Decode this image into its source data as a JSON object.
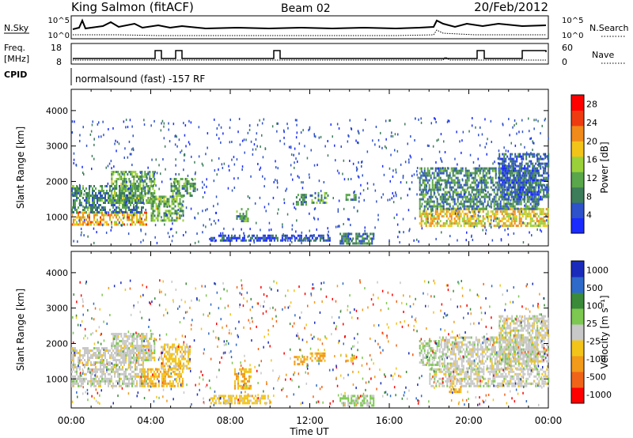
{
  "header": {
    "station": "King Salmon (fitACF)",
    "beam": "Beam 02",
    "date": "20/Feb/2012"
  },
  "strip": {
    "nsky_label": "N.Sky",
    "nsky_ticks": [
      "10^5",
      "10^0"
    ],
    "nsearch_label": "N.Search",
    "nsearch_ticks": [
      "10^5",
      "10^0"
    ],
    "freq_label_1": "Freq.",
    "freq_label_2": "[MHz]",
    "freq_ticks": [
      "18",
      "8"
    ],
    "nave_label": "Nave",
    "nave_ticks": [
      "60",
      "0"
    ],
    "cpid_label": "CPID",
    "cpid_text": "normalsound (fast) -157 RF"
  },
  "chart_data": [
    {
      "type": "heatmap",
      "name": "power-panel",
      "ylabel": "Slant Range [km]",
      "ylim": [
        180,
        4600
      ],
      "yticks": [
        1000,
        2000,
        3000,
        4000
      ],
      "xlim": [
        0,
        24
      ],
      "colorbar": {
        "label": "Power [dB]",
        "ticks": [
          "4",
          "8",
          "12",
          "16",
          "20",
          "24",
          "28"
        ],
        "range": [
          0,
          30
        ],
        "colors": [
          "#1a2bff",
          "#2e52c9",
          "#3d7d5a",
          "#5aa64a",
          "#9ad13b",
          "#f2c41a",
          "#f08a1a",
          "#ee3c10",
          "#ff0000"
        ]
      },
      "echo_regions": [
        {
          "t0": 0.0,
          "t1": 3.8,
          "r0": 750,
          "r1": 1150,
          "level": 20
        },
        {
          "t0": 0.0,
          "t1": 3.6,
          "r0": 1150,
          "r1": 1900,
          "level": 9
        },
        {
          "t0": 2.0,
          "t1": 4.2,
          "r0": 1400,
          "r1": 2300,
          "level": 12
        },
        {
          "t0": 4.0,
          "t1": 5.6,
          "r0": 900,
          "r1": 1600,
          "level": 12
        },
        {
          "t0": 5.0,
          "t1": 6.2,
          "r0": 1600,
          "r1": 2100,
          "level": 10
        },
        {
          "t0": 8.3,
          "t1": 8.9,
          "r0": 900,
          "r1": 1250,
          "level": 10
        },
        {
          "t0": 11.3,
          "t1": 11.8,
          "r0": 1350,
          "r1": 1650,
          "level": 9
        },
        {
          "t0": 12.0,
          "t1": 12.9,
          "r0": 1400,
          "r1": 1700,
          "level": 10
        },
        {
          "t0": 13.8,
          "t1": 14.3,
          "r0": 1500,
          "r1": 1650,
          "level": 9
        },
        {
          "t0": 13.5,
          "t1": 15.2,
          "r0": 250,
          "r1": 550,
          "level": 8
        },
        {
          "t0": 7.0,
          "t1": 13.0,
          "r0": 300,
          "r1": 500,
          "level": 5
        },
        {
          "t0": 17.5,
          "t1": 24.0,
          "r0": 750,
          "r1": 1250,
          "level": 18
        },
        {
          "t0": 17.5,
          "t1": 23.5,
          "r0": 1250,
          "r1": 2400,
          "level": 9
        },
        {
          "t0": 21.5,
          "t1": 24.0,
          "r0": 1500,
          "r1": 2800,
          "level": 6
        }
      ]
    },
    {
      "type": "heatmap",
      "name": "velocity-panel",
      "ylabel": "Slant Range [km]",
      "ylim": [
        180,
        4600
      ],
      "yticks": [
        1000,
        2000,
        3000,
        4000
      ],
      "xlim": [
        0,
        24
      ],
      "xlabel": "Time UT",
      "xticks": [
        "00:00",
        "04:00",
        "08:00",
        "12:00",
        "16:00",
        "20:00",
        "00:00"
      ],
      "colorbar": {
        "label": "Velocity [m s⁻¹]",
        "ticks": [
          "1000",
          "500",
          "100",
          "25",
          "-25",
          "-100",
          "-500",
          "-1000"
        ],
        "range": [
          -1000,
          1000
        ],
        "colors": [
          "#ff0000",
          "#f0641a",
          "#f29a1a",
          "#f2c41a",
          "#c8c8c8",
          "#7cc850",
          "#3a8a3a",
          "#2e6ac9",
          "#1a2bbb"
        ]
      },
      "echo_regions": [
        {
          "t0": 0.0,
          "t1": 3.8,
          "r0": 800,
          "r1": 1300,
          "level": 0
        },
        {
          "t0": 0.0,
          "t1": 3.6,
          "r0": 1300,
          "r1": 1900,
          "level": 0
        },
        {
          "t0": 2.0,
          "t1": 4.2,
          "r0": 1500,
          "r1": 2300,
          "level": 0
        },
        {
          "t0": 3.5,
          "t1": 5.6,
          "r0": 800,
          "r1": 1300,
          "level": -300
        },
        {
          "t0": 4.5,
          "t1": 6.0,
          "r0": 1300,
          "r1": 2000,
          "level": -200
        },
        {
          "t0": 8.2,
          "t1": 9.0,
          "r0": 750,
          "r1": 1300,
          "level": -300
        },
        {
          "t0": 7.0,
          "t1": 10.0,
          "r0": 300,
          "r1": 550,
          "level": -200
        },
        {
          "t0": 11.2,
          "t1": 11.9,
          "r0": 1400,
          "r1": 1650,
          "level": -400
        },
        {
          "t0": 12.0,
          "t1": 12.8,
          "r0": 1500,
          "r1": 1750,
          "level": -400
        },
        {
          "t0": 13.8,
          "t1": 14.3,
          "r0": 1500,
          "r1": 1680,
          "level": -300
        },
        {
          "t0": 13.5,
          "t1": 15.2,
          "r0": 250,
          "r1": 550,
          "level": 150
        },
        {
          "t0": 17.5,
          "t1": 18.5,
          "r0": 1400,
          "r1": 2100,
          "level": 150
        },
        {
          "t0": 18.0,
          "t1": 24.0,
          "r0": 800,
          "r1": 1300,
          "level": 0
        },
        {
          "t0": 18.5,
          "t1": 23.5,
          "r0": 1300,
          "r1": 2200,
          "level": 0
        },
        {
          "t0": 21.5,
          "t1": 24.0,
          "r0": 1500,
          "r1": 2800,
          "level": 0
        },
        {
          "t0": 19.0,
          "t1": 19.6,
          "r0": 600,
          "r1": 800,
          "level": -400
        }
      ]
    }
  ]
}
